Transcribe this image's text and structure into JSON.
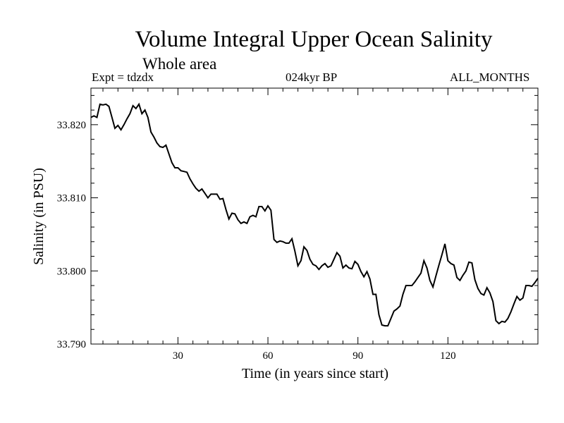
{
  "chart_data": {
    "type": "line",
    "title": "Volume Integral Upper Ocean Salinity",
    "subtitle": "Whole area",
    "experiment": "Expt = tdzdx",
    "period": "024kyr BP",
    "months": "ALL_MONTHS",
    "xlabel": "Time (in years since start)",
    "ylabel": "Salinity (in PSU)",
    "xlim": [
      1,
      150
    ],
    "ylim": [
      33.79,
      33.825
    ],
    "xticks": [
      30,
      60,
      90,
      120
    ],
    "xtick_labels": [
      "30",
      "60",
      "90",
      "120"
    ],
    "yticks": [
      33.79,
      33.8,
      33.81,
      33.82
    ],
    "ytick_labels": [
      "33.790",
      "33.800",
      "33.810",
      "33.820"
    ],
    "grid": false,
    "series": [
      {
        "name": "Salinity",
        "x": [
          1,
          2,
          3,
          4,
          5,
          6,
          7,
          8,
          9,
          10,
          11,
          12,
          13,
          14,
          15,
          16,
          17,
          18,
          19,
          20,
          21,
          22,
          23,
          24,
          25,
          26,
          27,
          28,
          29,
          30,
          31,
          32,
          33,
          34,
          35,
          36,
          37,
          38,
          39,
          40,
          41,
          42,
          43,
          44,
          45,
          46,
          47,
          48,
          49,
          50,
          51,
          52,
          53,
          54,
          55,
          56,
          57,
          58,
          59,
          60,
          61,
          62,
          63,
          64,
          65,
          66,
          67,
          68,
          69,
          70,
          71,
          72,
          73,
          74,
          75,
          76,
          77,
          78,
          79,
          80,
          81,
          82,
          83,
          84,
          85,
          86,
          87,
          88,
          89,
          90,
          91,
          92,
          93,
          94,
          95,
          96,
          97,
          98,
          99,
          100,
          101,
          102,
          103,
          104,
          105,
          106,
          107,
          108,
          109,
          110,
          111,
          112,
          113,
          114,
          115,
          116,
          117,
          118,
          119,
          120,
          121,
          122,
          123,
          124,
          125,
          126,
          127,
          128,
          129,
          130,
          131,
          132,
          133,
          134,
          135,
          136,
          137,
          138,
          139,
          140,
          141,
          142,
          143,
          144,
          145,
          146,
          147,
          148,
          149,
          150
        ],
        "values": [
          33.821,
          33.8212,
          33.821,
          33.8228,
          33.8227,
          33.8228,
          33.8225,
          33.821,
          33.8195,
          33.8199,
          33.8193,
          33.82,
          33.8208,
          33.8215,
          33.8226,
          33.8222,
          33.8228,
          33.8215,
          33.822,
          33.821,
          33.819,
          33.8183,
          33.8175,
          33.817,
          33.8169,
          33.8172,
          33.816,
          33.8148,
          33.8141,
          33.8141,
          33.8137,
          33.8136,
          33.8135,
          33.8126,
          33.8119,
          33.8113,
          33.8109,
          33.8112,
          33.8106,
          33.81,
          33.8105,
          33.8105,
          33.8105,
          33.8098,
          33.8099,
          33.8084,
          33.8071,
          33.8079,
          33.8078,
          33.807,
          33.8065,
          33.8067,
          33.8065,
          33.8074,
          33.8076,
          33.8074,
          33.8088,
          33.8088,
          33.8082,
          33.8089,
          33.8083,
          33.8043,
          33.8039,
          33.8041,
          33.804,
          33.8038,
          33.8038,
          33.8044,
          33.8027,
          33.8007,
          33.8014,
          33.8033,
          33.8028,
          33.8016,
          33.8009,
          33.8007,
          33.8002,
          33.8007,
          33.801,
          33.8005,
          33.8007,
          33.8016,
          33.8025,
          33.802,
          33.8004,
          33.8008,
          33.8004,
          33.8003,
          33.8013,
          33.8009,
          33.7999,
          33.7992,
          33.7999,
          33.7989,
          33.7968,
          33.7968,
          33.794,
          33.7926,
          33.7925,
          33.7925,
          33.7935,
          33.7945,
          33.7948,
          33.7952,
          33.7968,
          33.798,
          33.798,
          33.798,
          33.7985,
          33.7991,
          33.7997,
          33.8014,
          33.8004,
          33.7987,
          33.7978,
          33.7993,
          33.8008,
          33.8022,
          33.8037,
          33.8014,
          33.801,
          33.8008,
          33.7991,
          33.7987,
          33.7994,
          33.8,
          33.8012,
          33.8011,
          33.7988,
          33.7976,
          33.7969,
          33.7967,
          33.7977,
          33.797,
          33.7958,
          33.7932,
          33.7928,
          33.7931,
          33.793,
          33.7935,
          33.7944,
          33.7955,
          33.7965,
          33.796,
          33.7963,
          33.798,
          33.798,
          33.7979,
          33.7984,
          33.799
        ]
      }
    ]
  }
}
